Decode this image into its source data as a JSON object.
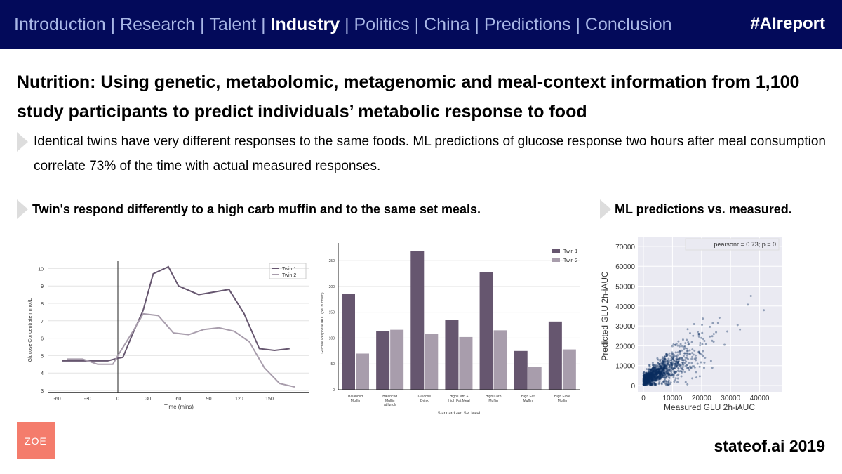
{
  "header": {
    "nav": [
      {
        "label": "Introduction",
        "active": false
      },
      {
        "label": "Research",
        "active": false
      },
      {
        "label": "Talent",
        "active": false
      },
      {
        "label": "Industry",
        "active": true
      },
      {
        "label": "Politics",
        "active": false
      },
      {
        "label": "China",
        "active": false
      },
      {
        "label": "Predictions",
        "active": false
      },
      {
        "label": "Conclusion",
        "active": false
      }
    ],
    "separator": " | ",
    "hashtag": "#AIreport"
  },
  "title": "Nutrition: Using genetic, metabolomic, metagenomic and meal-context information from 1,100 study participants to predict individuals’ metabolic response to food",
  "bullet": "Identical twins have very different responses to the same foods. ML predictions of glucose response two hours after meal consumption correlate 73% of the time with actual measured responses.",
  "subheads": {
    "left": "Twin's respond differently to a high carb muffin and to the same set meals.",
    "right": "ML predictions vs. measured."
  },
  "footer": {
    "logo": "ZOE",
    "brand": "stateof.ai 2019"
  },
  "colors": {
    "header_bg": "#030a5a",
    "twin1": "#66566f",
    "twin2": "#a89dac",
    "scatter": "#0a2d5e",
    "logo": "#f47c6c"
  },
  "chart_data": [
    {
      "type": "line",
      "xlabel": "Time (mins)",
      "ylabel": "Glucose Concentrate mmol/L",
      "xticks": [
        -60,
        -30,
        0,
        30,
        60,
        90,
        120,
        150
      ],
      "yticks": [
        3,
        4,
        5,
        6,
        7,
        8,
        9,
        10
      ],
      "xlim": [
        -70,
        190
      ],
      "ylim": [
        3,
        10.5
      ],
      "legend": "top-right",
      "series": [
        {
          "name": "Twin 1",
          "x": [
            -55,
            -40,
            -10,
            0,
            5,
            15,
            25,
            35,
            50,
            60,
            80,
            90,
            100,
            110,
            125,
            140,
            155,
            170
          ],
          "y": [
            4.7,
            4.7,
            4.7,
            4.85,
            4.9,
            6.3,
            7.6,
            9.7,
            10.1,
            9.0,
            8.5,
            8.6,
            8.7,
            8.8,
            7.4,
            5.4,
            5.3,
            5.4
          ]
        },
        {
          "name": "Twin 2",
          "x": [
            -50,
            -35,
            -20,
            -5,
            0,
            15,
            25,
            40,
            55,
            70,
            85,
            100,
            115,
            130,
            145,
            160,
            175
          ],
          "y": [
            4.8,
            4.8,
            4.5,
            4.5,
            5.0,
            6.4,
            7.4,
            7.3,
            6.3,
            6.2,
            6.5,
            6.6,
            6.4,
            5.8,
            4.3,
            3.4,
            3.2
          ]
        }
      ]
    },
    {
      "type": "bar",
      "xlabel": "Standardized Set Meal",
      "ylabel": "Glucose Response iAUC (per hundred)",
      "yticks": [
        0,
        50,
        100,
        150,
        200,
        250
      ],
      "ylim": [
        0,
        280
      ],
      "legend": "top-right",
      "categories": [
        [
          "Balanced",
          "Muffin"
        ],
        [
          "Balanced",
          "Muffin",
          "at lunch"
        ],
        [
          "Glucose",
          "Drink"
        ],
        [
          "High Carb +",
          "High Fat Meal"
        ],
        [
          "High Carb",
          "Muffin"
        ],
        [
          "High Fat",
          "Muffin"
        ],
        [
          "High Fibre",
          "Muffin"
        ]
      ],
      "series": [
        {
          "name": "Twin 1",
          "values": [
            186,
            114,
            268,
            135,
            227,
            75,
            132
          ]
        },
        {
          "name": "Twin 2",
          "values": [
            70,
            116,
            108,
            102,
            115,
            44,
            78
          ]
        }
      ]
    },
    {
      "type": "scatter",
      "xlabel": "Measured GLU 2h-iAUC",
      "ylabel": "Predicted GLU 2h-iAUC",
      "xticks": [
        0,
        10000,
        20000,
        30000,
        40000
      ],
      "yticks": [
        0,
        10000,
        20000,
        30000,
        40000,
        50000,
        60000,
        70000
      ],
      "xlim": [
        -1500,
        50000
      ],
      "ylim": [
        -3000,
        75000
      ],
      "legend": "top-right",
      "annotation": "pearsonr = 0.73; p = 0",
      "pearson_r": 0.73,
      "n_points_approx": 1200
    }
  ]
}
